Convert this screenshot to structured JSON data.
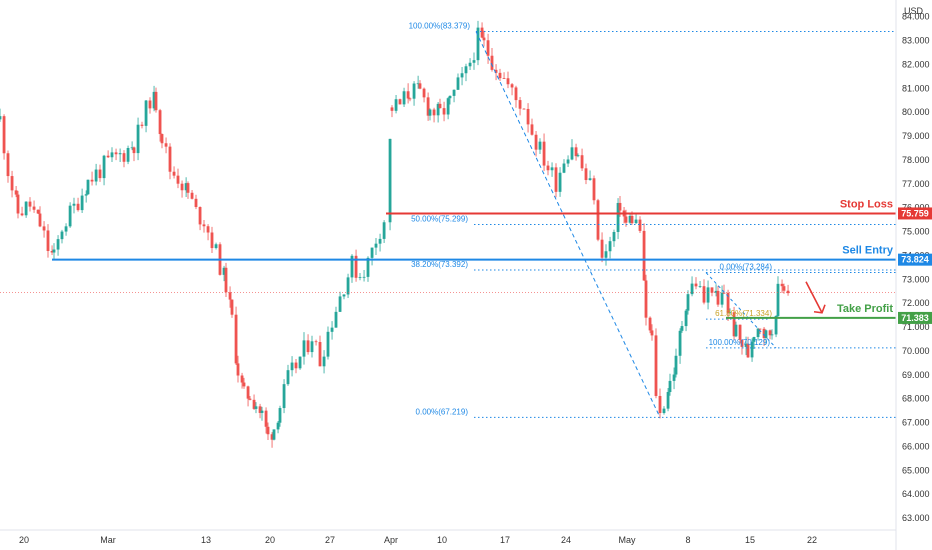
{
  "chart_data": {
    "type": "candlestick",
    "currency": "USD",
    "y_axis": {
      "ylim": [
        62.5,
        84.7
      ],
      "ticks": [
        "84.000",
        "83.000",
        "82.000",
        "81.000",
        "80.000",
        "79.000",
        "78.000",
        "77.000",
        "76.000",
        "75.000",
        "74.000",
        "73.000",
        "72.000",
        "71.000",
        "70.000",
        "69.000",
        "68.000",
        "67.000",
        "66.000",
        "65.000",
        "64.000",
        "63.000"
      ]
    },
    "x_axis": {
      "tick_labels": [
        "20",
        "Mar",
        "13",
        "20",
        "27",
        "Apr",
        "10",
        "17",
        "24",
        "May",
        "8",
        "15",
        "22"
      ]
    },
    "horizontal_levels": [
      {
        "name": "Stop Loss",
        "value": 75.759,
        "tag": "75.759",
        "color": "#e53935"
      },
      {
        "name": "Sell Entry",
        "value": 73.824,
        "tag": "73.824",
        "color": "#1e88e5"
      },
      {
        "name": "Take Profit",
        "value": 71.383,
        "tag": "71.383",
        "color": "#43a047"
      }
    ],
    "fib_labels": [
      {
        "text": "100.00%(83.379)",
        "value": 83.379,
        "color": "#1e88e5"
      },
      {
        "text": "50.00%(75.299)",
        "value": 75.299,
        "color": "#1e88e5"
      },
      {
        "text": "38.20%(73.392)",
        "value": 73.392,
        "color": "#1e88e5"
      },
      {
        "text": "0.00%(67.219)",
        "value": 67.219,
        "color": "#1e88e5"
      },
      {
        "text": "0.00%(73.284)",
        "value": 73.284,
        "color": "#1e88e5"
      },
      {
        "text": "61.80%(71.334)",
        "value": 71.334,
        "color": "#c9a227"
      },
      {
        "text": "100.00%(70.129)",
        "value": 70.129,
        "color": "#1e88e5"
      }
    ],
    "last_price": 72.45,
    "price_path": [
      [
        0,
        79.7
      ],
      [
        8,
        77.6
      ],
      [
        18,
        75.8
      ],
      [
        30,
        76.1
      ],
      [
        40,
        75.3
      ],
      [
        48,
        74.3
      ],
      [
        54,
        73.9
      ],
      [
        62,
        75.2
      ],
      [
        74,
        76.0
      ],
      [
        88,
        77.1
      ],
      [
        100,
        77.6
      ],
      [
        112,
        78.0
      ],
      [
        124,
        78.3
      ],
      [
        134,
        78.7
      ],
      [
        142,
        79.5
      ],
      [
        150,
        80.6
      ],
      [
        156,
        80.4
      ],
      [
        162,
        79.0
      ],
      [
        170,
        77.6
      ],
      [
        178,
        77.3
      ],
      [
        188,
        76.6
      ],
      [
        196,
        75.8
      ],
      [
        204,
        75.5
      ],
      [
        212,
        74.6
      ],
      [
        220,
        73.6
      ],
      [
        226,
        72.8
      ],
      [
        232,
        71.3
      ],
      [
        238,
        69.2
      ],
      [
        244,
        68.1
      ],
      [
        250,
        68.2
      ],
      [
        256,
        67.8
      ],
      [
        262,
        67.3
      ],
      [
        268,
        66.4
      ],
      [
        274,
        66.8
      ],
      [
        280,
        67.7
      ],
      [
        288,
        68.8
      ],
      [
        296,
        69.4
      ],
      [
        304,
        70.0
      ],
      [
        312,
        70.7
      ],
      [
        320,
        69.6
      ],
      [
        328,
        70.8
      ],
      [
        336,
        71.8
      ],
      [
        344,
        72.8
      ],
      [
        352,
        73.6
      ],
      [
        360,
        73.2
      ],
      [
        368,
        73.7
      ],
      [
        376,
        74.7
      ],
      [
        386,
        75.7
      ],
      [
        392,
        80.2
      ],
      [
        400,
        80.3
      ],
      [
        410,
        80.9
      ],
      [
        420,
        80.8
      ],
      [
        430,
        80.1
      ],
      [
        440,
        79.9
      ],
      [
        450,
        80.4
      ],
      [
        458,
        81.1
      ],
      [
        466,
        81.6
      ],
      [
        474,
        82.6
      ],
      [
        478,
        83.1
      ],
      [
        484,
        82.8
      ],
      [
        492,
        82.2
      ],
      [
        500,
        81.7
      ],
      [
        508,
        81.1
      ],
      [
        516,
        80.5
      ],
      [
        524,
        80.3
      ],
      [
        532,
        79.2
      ],
      [
        540,
        78.4
      ],
      [
        548,
        77.7
      ],
      [
        556,
        77.1
      ],
      [
        564,
        78.1
      ],
      [
        572,
        78.7
      ],
      [
        578,
        78.1
      ],
      [
        586,
        77.2
      ],
      [
        594,
        76.6
      ],
      [
        598,
        74.4
      ],
      [
        606,
        74.1
      ],
      [
        614,
        74.9
      ],
      [
        620,
        76.2
      ],
      [
        626,
        75.3
      ],
      [
        632,
        75.6
      ],
      [
        640,
        75.1
      ],
      [
        646,
        71.4
      ],
      [
        652,
        70.4
      ],
      [
        656,
        68.3
      ],
      [
        660,
        67.3
      ],
      [
        664,
        67.9
      ],
      [
        670,
        68.7
      ],
      [
        676,
        69.5
      ],
      [
        682,
        71.2
      ],
      [
        688,
        72.5
      ],
      [
        696,
        72.9
      ],
      [
        704,
        72.1
      ],
      [
        712,
        72.8
      ],
      [
        718,
        71.8
      ],
      [
        724,
        72.5
      ],
      [
        730,
        71.4
      ],
      [
        736,
        70.7
      ],
      [
        742,
        70.3
      ],
      [
        748,
        69.9
      ],
      [
        754,
        70.9
      ],
      [
        760,
        71.2
      ],
      [
        766,
        70.6
      ],
      [
        772,
        70.9
      ],
      [
        778,
        72.4
      ],
      [
        784,
        72.8
      ],
      [
        790,
        72.5
      ]
    ],
    "fib_retracement_1": {
      "from": [
        476,
        83.379
      ],
      "to": [
        660,
        67.219
      ]
    },
    "fib_retracement_2": {
      "from": [
        706,
        73.284
      ],
      "to": [
        776,
        70.129
      ]
    }
  }
}
